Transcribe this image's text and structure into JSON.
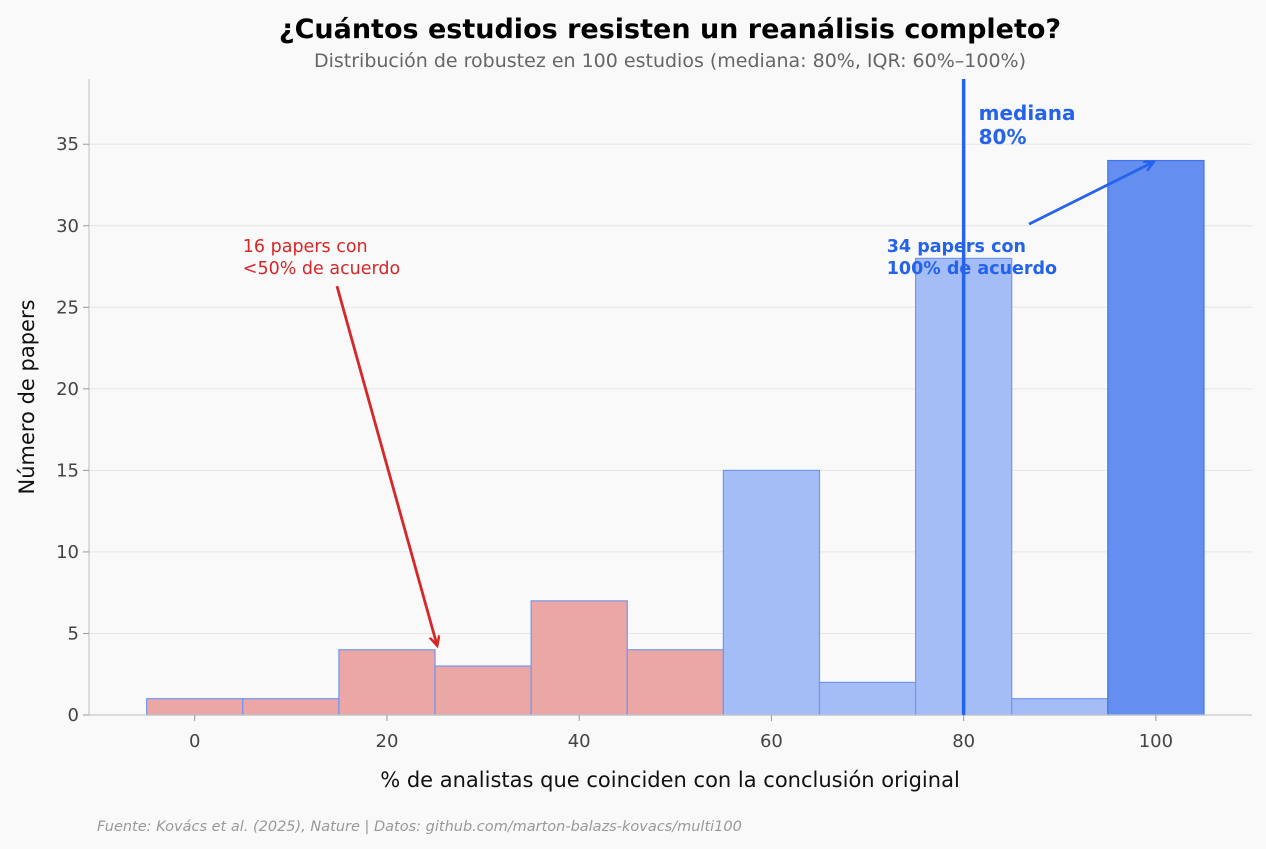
{
  "chart_data": {
    "type": "bar",
    "title": "¿Cuántos estudios resisten un reanálisis completo?",
    "subtitle": "Distribución de robustez en 100 estudios (mediana: 80%, IQR: 60%–100%)",
    "xlabel": "% de analistas que coinciden con la conclusión original",
    "ylabel": "Número de papers",
    "source": "Fuente: Kovács et al. (2025), Nature | Datos: github.com/marton-balazs-kovacs/multi100",
    "xlim": [
      -11,
      110
    ],
    "ylim": [
      0,
      39
    ],
    "grid": true,
    "bins": [
      {
        "center": 0,
        "value": 1,
        "group": "low"
      },
      {
        "center": 10,
        "value": 1,
        "group": "low"
      },
      {
        "center": 20,
        "value": 4,
        "group": "low"
      },
      {
        "center": 30,
        "value": 3,
        "group": "low"
      },
      {
        "center": 40,
        "value": 7,
        "group": "low"
      },
      {
        "center": 50,
        "value": 4,
        "group": "low"
      },
      {
        "center": 60,
        "value": 15,
        "group": "mid"
      },
      {
        "center": 70,
        "value": 2,
        "group": "mid"
      },
      {
        "center": 80,
        "value": 28,
        "group": "mid"
      },
      {
        "center": 90,
        "value": 1,
        "group": "mid"
      },
      {
        "center": 100,
        "value": 34,
        "group": "high"
      }
    ],
    "bin_width": 10,
    "x_ticks": [
      0,
      20,
      40,
      60,
      80,
      100
    ],
    "y_ticks": [
      0,
      5,
      10,
      15,
      20,
      25,
      30,
      35
    ],
    "median": {
      "x": 80,
      "label_lines": [
        "mediana",
        "80%"
      ]
    },
    "annotations": [
      {
        "name": "low-agreement-annotation",
        "lines": [
          "16 papers con",
          "<50% de acuerdo"
        ],
        "text_at": [
          5,
          28.4
        ],
        "arrow_from": [
          14.8,
          26.3
        ],
        "arrow_to": [
          25.2,
          4.3
        ],
        "style": "red"
      },
      {
        "name": "full-agreement-annotation",
        "lines": [
          "34 papers con",
          "100% de acuerdo"
        ],
        "text_at": [
          72,
          28.4
        ],
        "arrow_from": [
          86.8,
          30.1
        ],
        "arrow_to": [
          99.7,
          33.9
        ],
        "style": "blue"
      }
    ],
    "colors": {
      "low": "#eba6a6",
      "mid": "#a4bdf6",
      "high": "#648ff0",
      "edge": "#7495ee",
      "edge_high": "#3f73e8",
      "median": "#2563eb",
      "red": "#d62728",
      "blue": "#2563eb"
    }
  }
}
